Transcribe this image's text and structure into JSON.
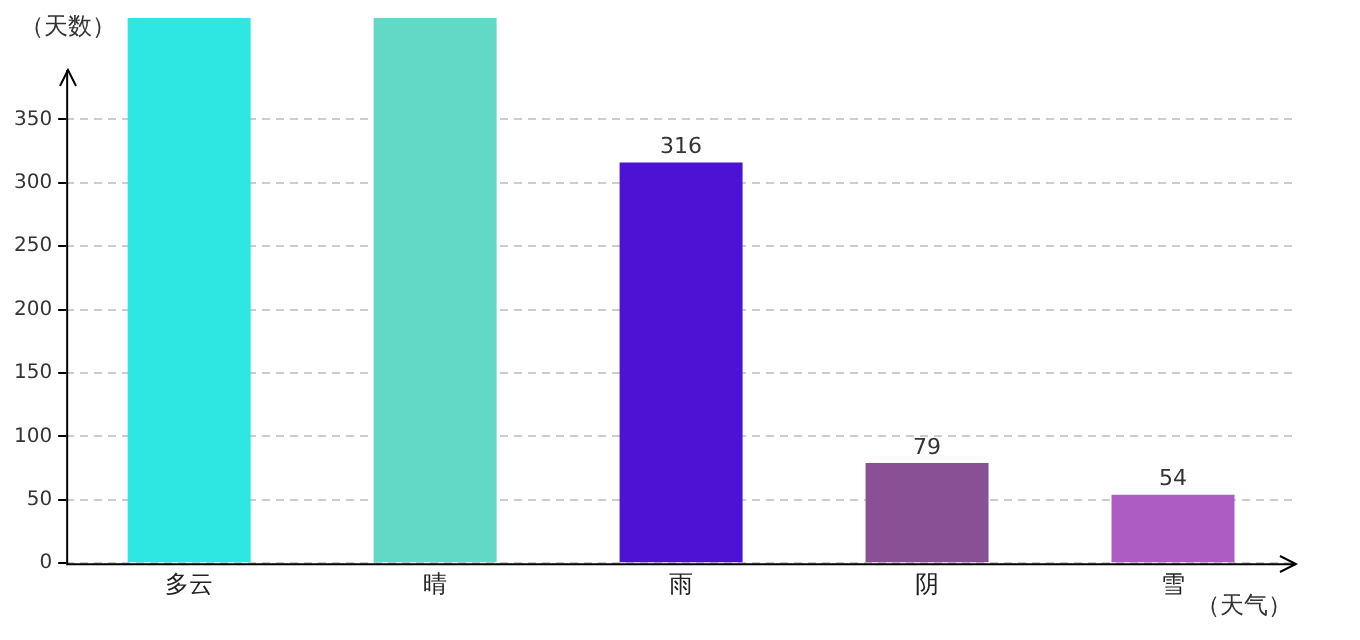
{
  "chart_data": {
    "type": "bar",
    "xlabel": "（天气）",
    "ylabel": "（天数）",
    "categories": [
      "多云",
      "晴",
      "雨",
      "阴",
      "雪"
    ],
    "values": [
      430,
      430,
      316,
      79,
      54
    ],
    "colors": [
      "#2ee6e2",
      "#62d9c6",
      "#4c13d4",
      "#8a5096",
      "#ad5cc4"
    ],
    "value_labels": [
      null,
      null,
      "316",
      "79",
      "54"
    ],
    "ylim": [
      0,
      430
    ],
    "yticks": [
      0,
      50,
      100,
      150,
      200,
      250,
      300,
      350
    ],
    "grid": "y",
    "legend": false
  }
}
